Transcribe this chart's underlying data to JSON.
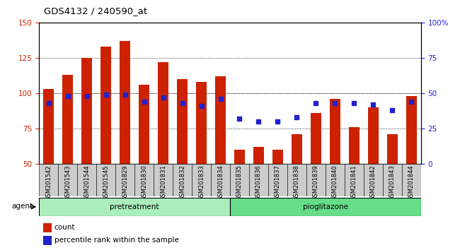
{
  "title": "GDS4132 / 240590_at",
  "categories": [
    "GSM201542",
    "GSM201543",
    "GSM201544",
    "GSM201545",
    "GSM201829",
    "GSM201830",
    "GSM201831",
    "GSM201832",
    "GSM201833",
    "GSM201834",
    "GSM201835",
    "GSM201836",
    "GSM201837",
    "GSM201838",
    "GSM201839",
    "GSM201840",
    "GSM201841",
    "GSM201842",
    "GSM201843",
    "GSM201844"
  ],
  "bar_values": [
    103,
    113,
    125,
    133,
    137,
    106,
    122,
    110,
    108,
    112,
    60,
    62,
    60,
    71,
    86,
    96,
    76,
    90,
    71,
    98
  ],
  "percentile_values": [
    43,
    48,
    48,
    49,
    49,
    44,
    47,
    43,
    41,
    46,
    32,
    30,
    30,
    33,
    43,
    43,
    43,
    42,
    38,
    44
  ],
  "bar_color": "#cc2200",
  "dot_color": "#2222cc",
  "ylim_left": [
    50,
    150
  ],
  "ylim_right": [
    0,
    100
  ],
  "yticks_left": [
    50,
    75,
    100,
    125,
    150
  ],
  "yticks_right": [
    0,
    25,
    50,
    75,
    100
  ],
  "ytick_labels_right": [
    "0",
    "25",
    "50",
    "75",
    "100%"
  ],
  "grid_values": [
    75,
    100,
    125
  ],
  "pretreatment_label": "pretreatment",
  "pioglitazone_label": "pioglitazone",
  "agent_label": "agent",
  "legend_count": "count",
  "legend_percentile": "percentile rank within the sample",
  "pretreatment_count": 10,
  "pioglitazone_count": 10,
  "bar_width": 0.55,
  "pretreatment_color": "#aaeebb",
  "pioglitazone_color": "#66dd88",
  "xtick_bg_color": "#cccccc",
  "background_color": "#ffffff"
}
